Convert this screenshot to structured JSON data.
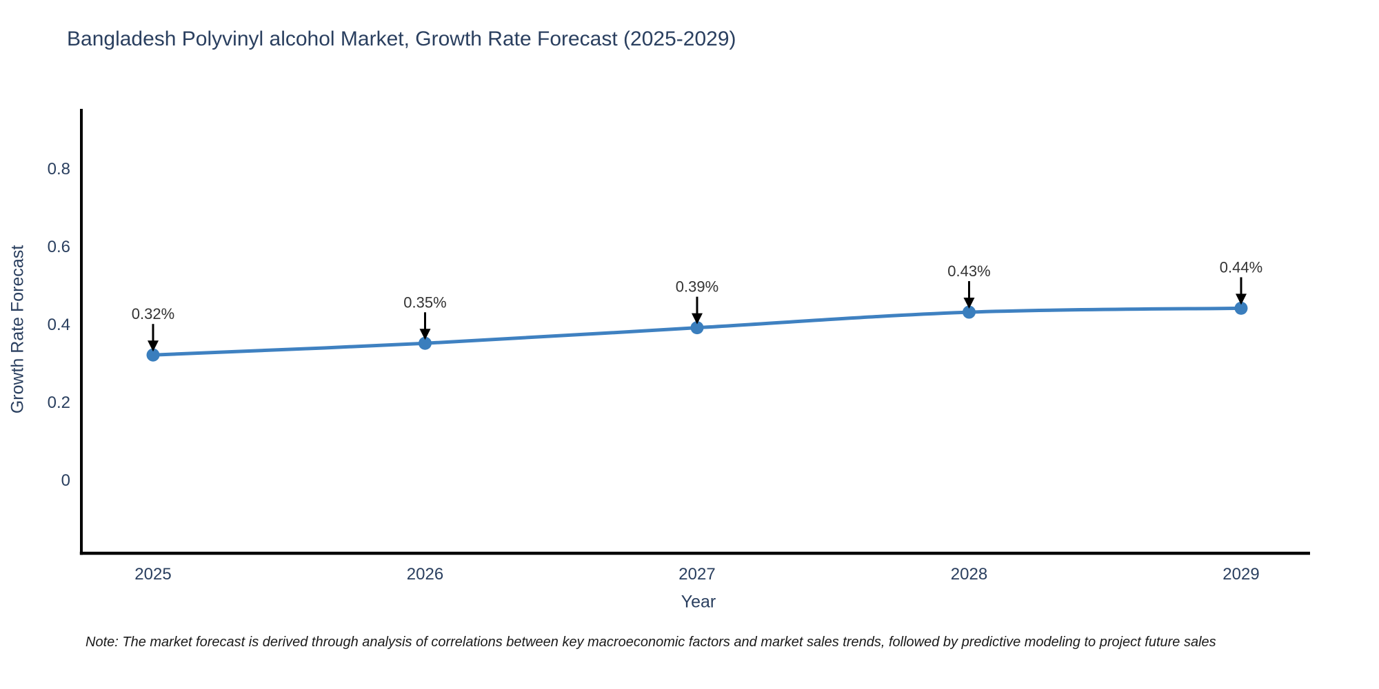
{
  "title": "Bangladesh Polyvinyl alcohol Market, Growth Rate Forecast (2025-2029)",
  "note": "Note: The market forecast is derived through analysis of correlations between key macroeconomic factors and market sales trends, followed by predictive modeling to project future sales",
  "chart_data": {
    "type": "line",
    "title": "Bangladesh Polyvinyl alcohol Market, Growth Rate Forecast (2025-2029)",
    "xlabel": "Year",
    "ylabel": "Growth Rate Forecast",
    "x": [
      2025,
      2026,
      2027,
      2028,
      2029
    ],
    "xticks": [
      "2025",
      "2026",
      "2027",
      "2028",
      "2029"
    ],
    "series": [
      {
        "name": "Growth Rate Forecast",
        "values": [
          0.32,
          0.35,
          0.39,
          0.43,
          0.44
        ]
      }
    ],
    "point_labels": [
      "0.32%",
      "0.35%",
      "0.39%",
      "0.43%",
      "0.44%"
    ],
    "yticks": [
      0,
      0.2,
      0.4,
      0.6,
      0.8
    ],
    "ylim": [
      -0.19,
      0.95
    ],
    "grid": false,
    "legend": "none",
    "line_shape": "spline",
    "colors": {
      "line": "#3f81c1",
      "marker": "#3a7ebd",
      "axis_line": "#000000",
      "tick_text": "#2a3f5f",
      "annotation_text": "#333333",
      "arrow": "#000000"
    }
  }
}
